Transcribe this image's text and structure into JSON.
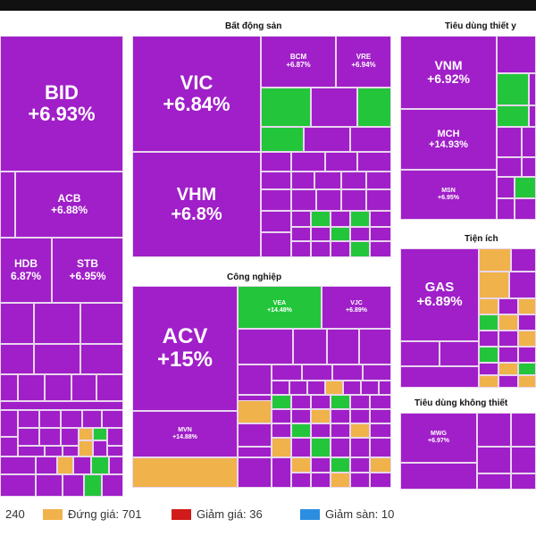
{
  "colors": {
    "ceiling": "#a01fc8",
    "up": "#23c63b",
    "flat": "#f0b24a",
    "down": "#d11a1a",
    "floor": "#2b8ee0"
  },
  "sectors": [
    {
      "id": "bds",
      "title": "Bất động sản"
    },
    {
      "id": "tieudung",
      "title": "Tiêu dùng thiết y"
    },
    {
      "id": "congnghiep",
      "title": "Công nghiệp"
    },
    {
      "id": "tienich",
      "title": "Tiện ích"
    },
    {
      "id": "tdkhongthiet",
      "title": "Tiêu dùng không thiết"
    }
  ],
  "chart_data": {
    "type": "treemap",
    "stocks": [
      {
        "ticker": "BID",
        "change": "+6.93%",
        "status": "ceiling"
      },
      {
        "ticker": "ACB",
        "change": "+6.88%",
        "status": "ceiling"
      },
      {
        "ticker": "HDB",
        "change": "6.87%",
        "status": "ceiling"
      },
      {
        "ticker": "STB",
        "change": "+6.95%",
        "status": "ceiling"
      },
      {
        "ticker": "VIC",
        "change": "+6.84%",
        "status": "ceiling"
      },
      {
        "ticker": "VHM",
        "change": "+6.8%",
        "status": "ceiling"
      },
      {
        "ticker": "BCM",
        "change": "+6.87%",
        "status": "ceiling"
      },
      {
        "ticker": "VRE",
        "change": "+6.94%",
        "status": "ceiling"
      },
      {
        "ticker": "VNM",
        "change": "+6.92%",
        "status": "ceiling"
      },
      {
        "ticker": "MCH",
        "change": "+14.93%",
        "status": "ceiling"
      },
      {
        "ticker": "MSN",
        "change": "+6.95%",
        "status": "ceiling"
      },
      {
        "ticker": "ACV",
        "change": "+15%",
        "status": "ceiling"
      },
      {
        "ticker": "VEA",
        "change": "+14.48%",
        "status": "up"
      },
      {
        "ticker": "VJC",
        "change": "+6.89%",
        "status": "ceiling"
      },
      {
        "ticker": "MVN",
        "change": "+14.88%",
        "status": "ceiling"
      },
      {
        "ticker": "GAS",
        "change": "+6.89%",
        "status": "ceiling"
      },
      {
        "ticker": "MWG",
        "change": "+6.97%",
        "status": "ceiling"
      }
    ]
  },
  "legend": [
    {
      "label": "240",
      "color": "#a01fc8"
    },
    {
      "label": "Đứng giá: 701",
      "color": "#f0b24a"
    },
    {
      "label": "Giảm giá: 36",
      "color": "#d11a1a"
    },
    {
      "label": "Giảm sàn: 10",
      "color": "#2b8ee0"
    }
  ]
}
